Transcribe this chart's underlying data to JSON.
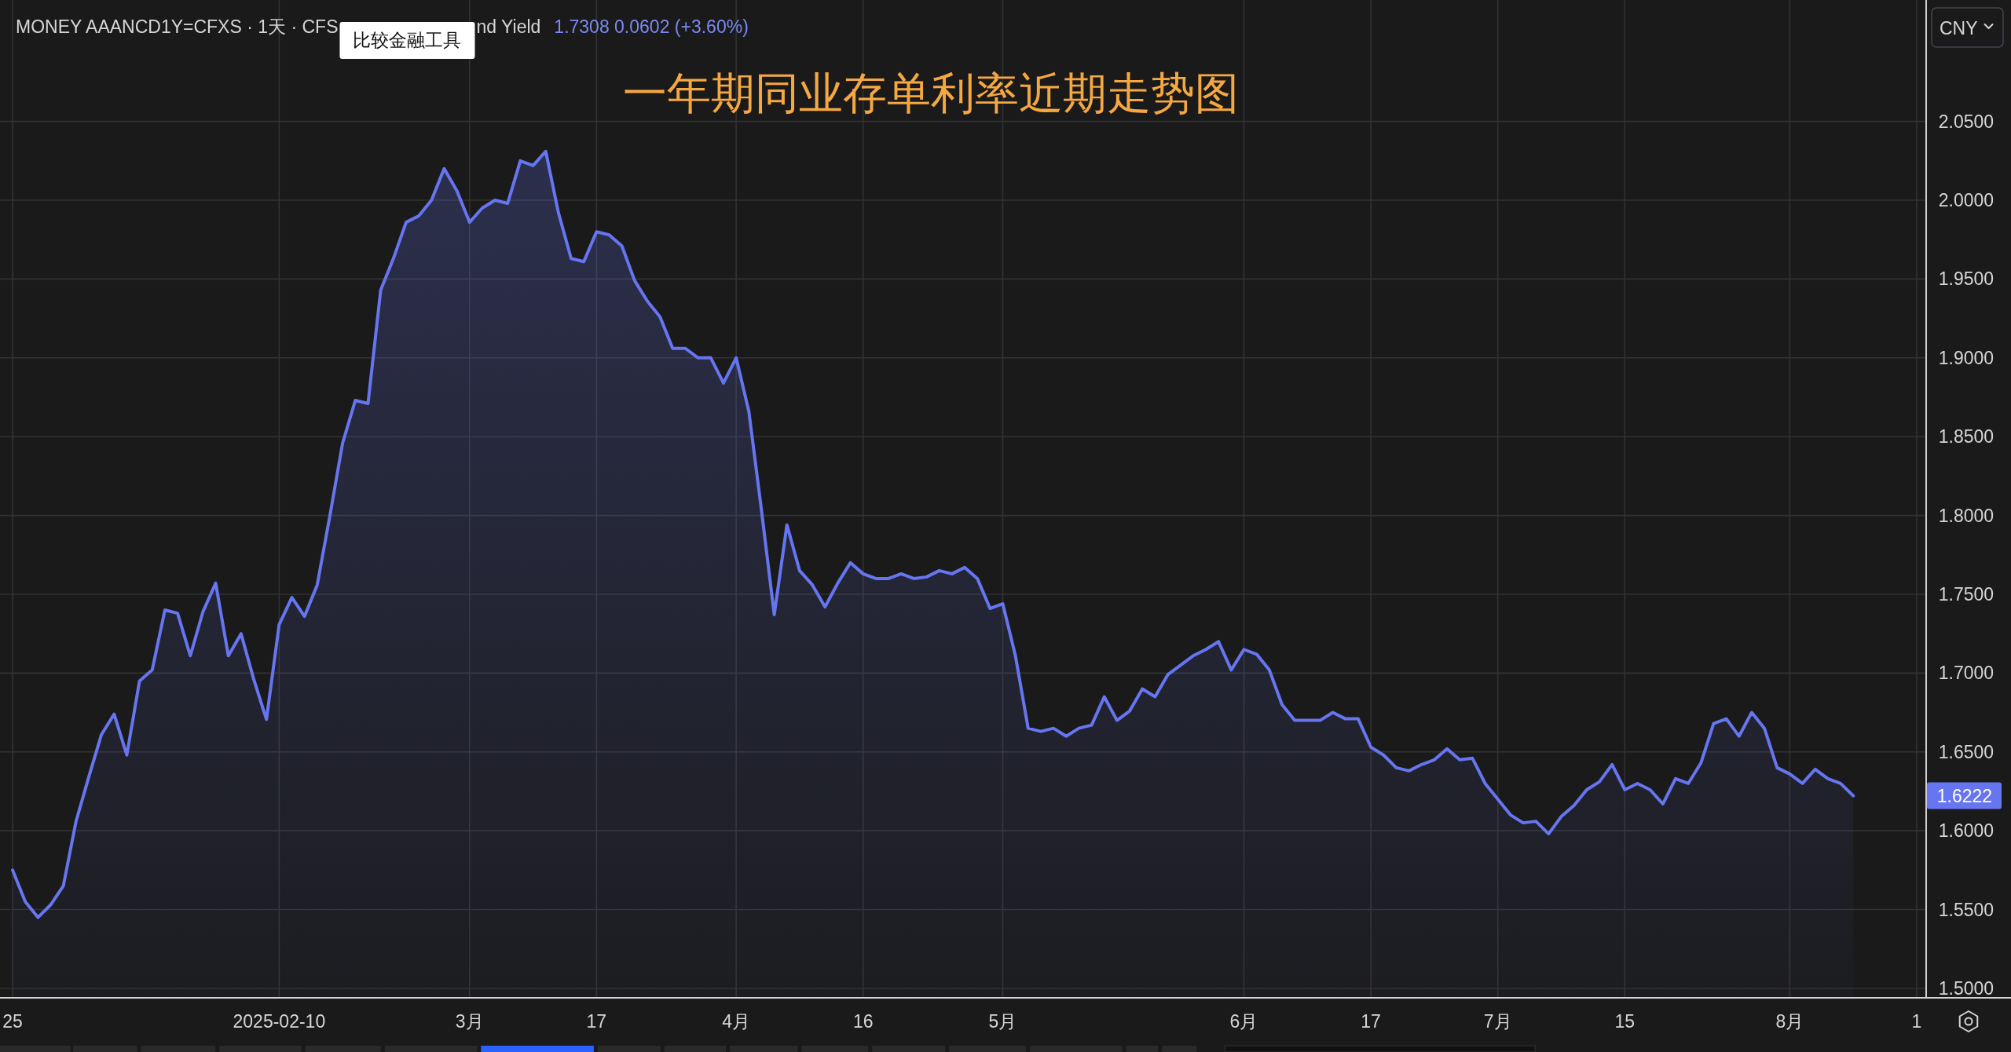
{
  "chart_data": {
    "type": "area",
    "title": "一年期同业存单利率近期走势图",
    "categories": [
      "25",
      null,
      null,
      null,
      null,
      null,
      null,
      null,
      null,
      null,
      null,
      null,
      null,
      null,
      null,
      null,
      null,
      null,
      null,
      null,
      null,
      "2025-02-10",
      null,
      null,
      null,
      null,
      null,
      null,
      null,
      null,
      null,
      null,
      null,
      null,
      null,
      null,
      "3月",
      null,
      null,
      null,
      null,
      null,
      null,
      null,
      null,
      null,
      "17",
      null,
      null,
      null,
      null,
      null,
      null,
      null,
      null,
      null,
      null,
      "4月",
      null,
      null,
      null,
      null,
      null,
      null,
      null,
      null,
      null,
      "16",
      null,
      null,
      null,
      null,
      null,
      null,
      null,
      null,
      null,
      null,
      "5月",
      null,
      null,
      null,
      null,
      null,
      null,
      null,
      null,
      null,
      null,
      null,
      null,
      null,
      null,
      null,
      null,
      null,
      null,
      "6月",
      null,
      null,
      null,
      null,
      null,
      null,
      null,
      null,
      null,
      "17",
      null,
      null,
      null,
      null,
      null,
      null,
      null,
      null,
      null,
      "7月",
      null,
      null,
      null,
      null,
      null,
      null,
      null,
      null,
      null,
      "15",
      null,
      null,
      null,
      null,
      null,
      null,
      null,
      null,
      null,
      null,
      null,
      null,
      "8月",
      null,
      null,
      null,
      null,
      null,
      null,
      null,
      null,
      null,
      "1"
    ],
    "values": [
      1.575,
      1.555,
      1.545,
      1.553,
      1.565,
      1.606,
      1.634,
      1.661,
      1.674,
      1.648,
      1.695,
      1.702,
      1.74,
      1.738,
      1.711,
      1.739,
      1.757,
      1.711,
      1.725,
      1.696,
      1.6706,
      1.7308,
      1.748,
      1.736,
      1.756,
      1.8,
      1.846,
      1.873,
      1.871,
      1.943,
      1.963,
      1.986,
      1.99,
      2.0,
      2.02,
      2.006,
      1.986,
      1.995,
      2.0,
      1.998,
      2.025,
      2.022,
      2.031,
      1.992,
      1.963,
      1.961,
      1.98,
      1.978,
      1.971,
      1.949,
      1.936,
      1.926,
      1.906,
      1.906,
      1.9,
      1.9,
      1.884,
      1.9,
      1.866,
      1.803,
      1.737,
      1.794,
      1.765,
      1.756,
      1.742,
      1.757,
      1.77,
      1.763,
      1.76,
      1.76,
      1.763,
      1.76,
      1.761,
      1.765,
      1.763,
      1.767,
      1.76,
      1.741,
      1.744,
      1.711,
      1.665,
      1.663,
      1.665,
      1.66,
      1.665,
      1.667,
      1.685,
      1.67,
      1.676,
      1.69,
      1.685,
      1.699,
      1.705,
      1.711,
      1.715,
      1.72,
      1.702,
      1.715,
      1.712,
      1.702,
      1.68,
      1.67,
      1.67,
      1.67,
      1.675,
      1.671,
      1.671,
      1.653,
      1.648,
      1.64,
      1.638,
      1.642,
      1.645,
      1.652,
      1.645,
      1.646,
      1.63,
      1.62,
      1.61,
      1.605,
      1.606,
      1.598,
      1.609,
      1.616,
      1.626,
      1.631,
      1.642,
      1.626,
      1.63,
      1.626,
      1.617,
      1.633,
      1.63,
      1.643,
      1.668,
      1.671,
      1.66,
      1.675,
      1.665,
      1.64,
      1.636,
      1.63,
      1.639,
      1.633,
      1.63,
      1.6222,
      null,
      null,
      null,
      null,
      null
    ],
    "color": "#6675f0",
    "ylim": [
      1.494,
      2.127
    ],
    "yticks": [
      {
        "value": 1.5,
        "label": "1.5000"
      },
      {
        "value": 1.55,
        "label": "1.5500"
      },
      {
        "value": 1.6,
        "label": "1.6000"
      },
      {
        "value": 1.65,
        "label": "1.6500"
      },
      {
        "value": 1.7,
        "label": "1.7000"
      },
      {
        "value": 1.75,
        "label": "1.7500"
      },
      {
        "value": 1.8,
        "label": "1.8000"
      },
      {
        "value": 1.85,
        "label": "1.8500"
      },
      {
        "value": 1.9,
        "label": "1.9000"
      },
      {
        "value": 1.95,
        "label": "1.9500"
      },
      {
        "value": 2.0,
        "label": "2.0000"
      },
      {
        "value": 2.05,
        "label": "2.0500"
      }
    ],
    "grid": true,
    "annotations": [
      "MONEY AAANCD1Y=CFXS · 1天 · CFS",
      "比较金融工具",
      "nd Yield",
      "1.7308  0.0602 (+3.60%)",
      "CNY",
      "1.6222"
    ]
  }
}
